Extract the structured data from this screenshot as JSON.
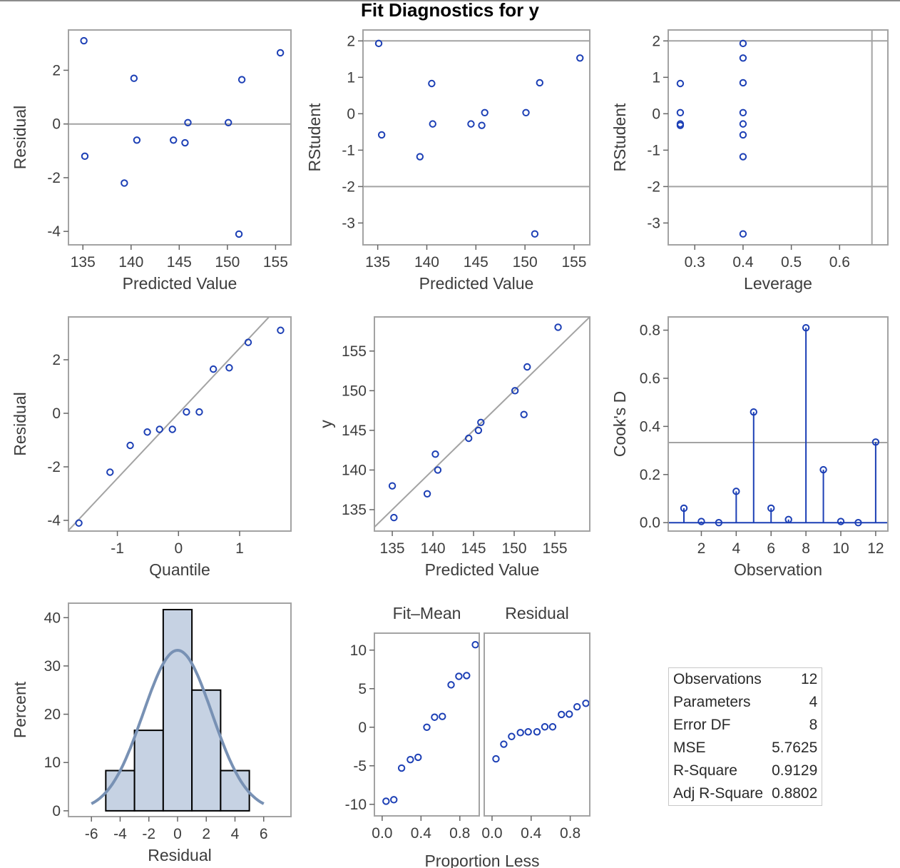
{
  "title": "Fit Diagnostics for y",
  "colors": {
    "marker": "#1c3fb5",
    "reference": "#a3a3a3",
    "bar_fill": "#c6d2e3",
    "curve": "#7891b4"
  },
  "chart_data": [
    {
      "id": "resid-vs-pred",
      "type": "scatter",
      "xlabel": "Predicted Value",
      "ylabel": "Residual",
      "xlim": [
        133.5,
        156.6
      ],
      "ylim": [
        -4.5,
        3.5
      ],
      "xticks": [
        135,
        140,
        145,
        150,
        155
      ],
      "yticks": [
        -4,
        -2,
        0,
        2
      ],
      "hlines": [
        0
      ],
      "x": [
        135.1,
        135.2,
        139.3,
        140.3,
        140.6,
        144.4,
        145.6,
        145.9,
        150.1,
        151.2,
        151.5,
        155.5
      ],
      "y": [
        3.1,
        -1.2,
        -2.2,
        1.7,
        -0.6,
        -0.6,
        -0.7,
        0.05,
        0.05,
        -4.1,
        1.65,
        2.65
      ]
    },
    {
      "id": "rstudent-vs-pred",
      "type": "scatter",
      "xlabel": "Predicted Value",
      "ylabel": "RStudent",
      "xlim": [
        133.5,
        156.6
      ],
      "ylim": [
        -3.6,
        2.3
      ],
      "xticks": [
        135,
        140,
        145,
        150,
        155
      ],
      "yticks": [
        -3,
        -2,
        -1,
        0,
        1,
        2
      ],
      "hlines": [
        -2,
        2
      ],
      "x": [
        135.1,
        135.4,
        139.3,
        140.5,
        140.6,
        144.5,
        145.6,
        145.9,
        150.1,
        151.0,
        151.5,
        155.6
      ],
      "y": [
        1.93,
        -0.58,
        -1.18,
        0.83,
        -0.28,
        -0.28,
        -0.32,
        0.03,
        0.03,
        -3.3,
        0.85,
        1.53
      ]
    },
    {
      "id": "rstudent-vs-leverage",
      "type": "scatter",
      "xlabel": "Leverage",
      "ylabel": "RStudent",
      "xlim": [
        0.245,
        0.7
      ],
      "ylim": [
        -3.6,
        2.3
      ],
      "xticks": [
        0.3,
        0.4,
        0.5,
        0.6
      ],
      "xtick_labels": [
        "0.3",
        "0.4",
        "0.5",
        "0.6"
      ],
      "yticks": [
        -3,
        -2,
        -1,
        0,
        1,
        2
      ],
      "hlines": [
        -2,
        2
      ],
      "vlines": [
        0.667
      ],
      "x": [
        0.27,
        0.27,
        0.27,
        0.27,
        0.4,
        0.4,
        0.4,
        0.4,
        0.4,
        0.4,
        0.4,
        0.4
      ],
      "y": [
        0.83,
        0.03,
        -0.28,
        -0.32,
        1.93,
        1.53,
        0.85,
        0.03,
        -0.58,
        -1.18,
        -3.3,
        -0.28
      ]
    },
    {
      "id": "resid-qq",
      "type": "scatter",
      "xlabel": "Quantile",
      "ylabel": "Residual",
      "xlim": [
        -1.8,
        1.84
      ],
      "ylim": [
        -4.4,
        3.6
      ],
      "xticks": [
        -1,
        0,
        1
      ],
      "yticks": [
        -4,
        -2,
        0,
        2
      ],
      "refline": {
        "intercept": 0,
        "slope": 2.43
      },
      "x": [
        -1.63,
        -1.12,
        -0.79,
        -0.51,
        -0.31,
        -0.1,
        0.13,
        0.34,
        0.57,
        0.83,
        1.14,
        1.67
      ],
      "y": [
        -4.1,
        -2.2,
        -1.2,
        -0.7,
        -0.6,
        -0.6,
        0.05,
        0.05,
        1.65,
        1.7,
        2.65,
        3.1
      ]
    },
    {
      "id": "y-vs-pred",
      "type": "scatter",
      "xlabel": "Predicted Value",
      "ylabel": "y",
      "xlim": [
        132.8,
        159.3
      ],
      "ylim": [
        132.3,
        159.3
      ],
      "xticks": [
        135,
        140,
        145,
        150,
        155
      ],
      "yticks": [
        135,
        140,
        145,
        150,
        155
      ],
      "refline": {
        "intercept": 0,
        "slope": 1
      },
      "x": [
        135.0,
        135.2,
        139.3,
        140.3,
        140.6,
        144.4,
        145.6,
        145.9,
        150.1,
        151.2,
        151.6,
        155.4
      ],
      "y": [
        138.0,
        134.0,
        137.0,
        142.0,
        140.0,
        144.0,
        145.0,
        146.0,
        150.0,
        147.0,
        153.0,
        158.0
      ]
    },
    {
      "id": "cooks-d",
      "type": "needle",
      "xlabel": "Observation",
      "ylabel": "Cook's D",
      "xlim": [
        0.1,
        12.7
      ],
      "ylim": [
        -0.035,
        0.855
      ],
      "xticks": [
        2,
        4,
        6,
        8,
        10,
        12
      ],
      "yticks": [
        0.0,
        0.2,
        0.4,
        0.6,
        0.8
      ],
      "ytick_labels": [
        "0.0",
        "0.2",
        "0.4",
        "0.6",
        "0.8"
      ],
      "hlines": [
        0.333
      ],
      "x": [
        1,
        2,
        3,
        4,
        5,
        6,
        7,
        8,
        9,
        10,
        11,
        12
      ],
      "y": [
        0.06,
        0.005,
        0.0,
        0.13,
        0.46,
        0.06,
        0.013,
        0.81,
        0.22,
        0.005,
        0.0,
        0.335
      ]
    },
    {
      "id": "resid-histogram",
      "type": "bar",
      "xlabel": "Residual",
      "ylabel": "Percent",
      "xlim": [
        -7.6,
        7.9
      ],
      "ylim": [
        -1.2,
        43
      ],
      "xticks": [
        -6,
        -4,
        -2,
        0,
        2,
        4,
        6
      ],
      "yticks": [
        0,
        10,
        20,
        30,
        40
      ],
      "bins": [
        [
          -5,
          -3
        ],
        [
          -3,
          -1
        ],
        [
          -1,
          1
        ],
        [
          1,
          3
        ],
        [
          3,
          5
        ]
      ],
      "values": [
        8.33,
        16.67,
        41.67,
        25.0,
        8.33
      ],
      "density": {
        "mean": 0,
        "sd": 2.4,
        "scale": 200,
        "range": [
          -6,
          6
        ]
      }
    },
    {
      "id": "residual-fit-spread",
      "type": "scatter",
      "xlabel": "Proportion Less",
      "panels": [
        "Fit–Mean",
        "Residual"
      ],
      "xlim": [
        -0.08,
        1.0
      ],
      "ylim": [
        -11.5,
        12.2
      ],
      "xticks": [
        0.0,
        0.4,
        0.8
      ],
      "xtick_labels": [
        "0.0",
        "0.4",
        "0.8"
      ],
      "yticks": [
        -10,
        -5,
        0,
        5,
        10
      ],
      "series": [
        {
          "name": "Fit–Mean",
          "x": [
            0.04,
            0.12,
            0.2,
            0.29,
            0.37,
            0.46,
            0.54,
            0.62,
            0.71,
            0.79,
            0.87,
            0.96
          ],
          "y": [
            -9.6,
            -9.4,
            -5.3,
            -4.2,
            -3.9,
            0.0,
            1.3,
            1.4,
            5.5,
            6.6,
            6.7,
            10.7
          ]
        },
        {
          "name": "Residual",
          "x": [
            0.04,
            0.12,
            0.2,
            0.29,
            0.37,
            0.46,
            0.54,
            0.62,
            0.71,
            0.79,
            0.87,
            0.96
          ],
          "y": [
            -4.1,
            -2.2,
            -1.2,
            -0.7,
            -0.6,
            -0.6,
            0.05,
            0.05,
            1.65,
            1.7,
            2.65,
            3.1
          ]
        }
      ]
    }
  ],
  "stats": [
    {
      "label": "Observations",
      "value": "12"
    },
    {
      "label": "Parameters",
      "value": "4"
    },
    {
      "label": "Error DF",
      "value": "8"
    },
    {
      "label": "MSE",
      "value": "5.7625"
    },
    {
      "label": "R-Square",
      "value": "0.9129"
    },
    {
      "label": "Adj R-Square",
      "value": "0.8802"
    }
  ]
}
